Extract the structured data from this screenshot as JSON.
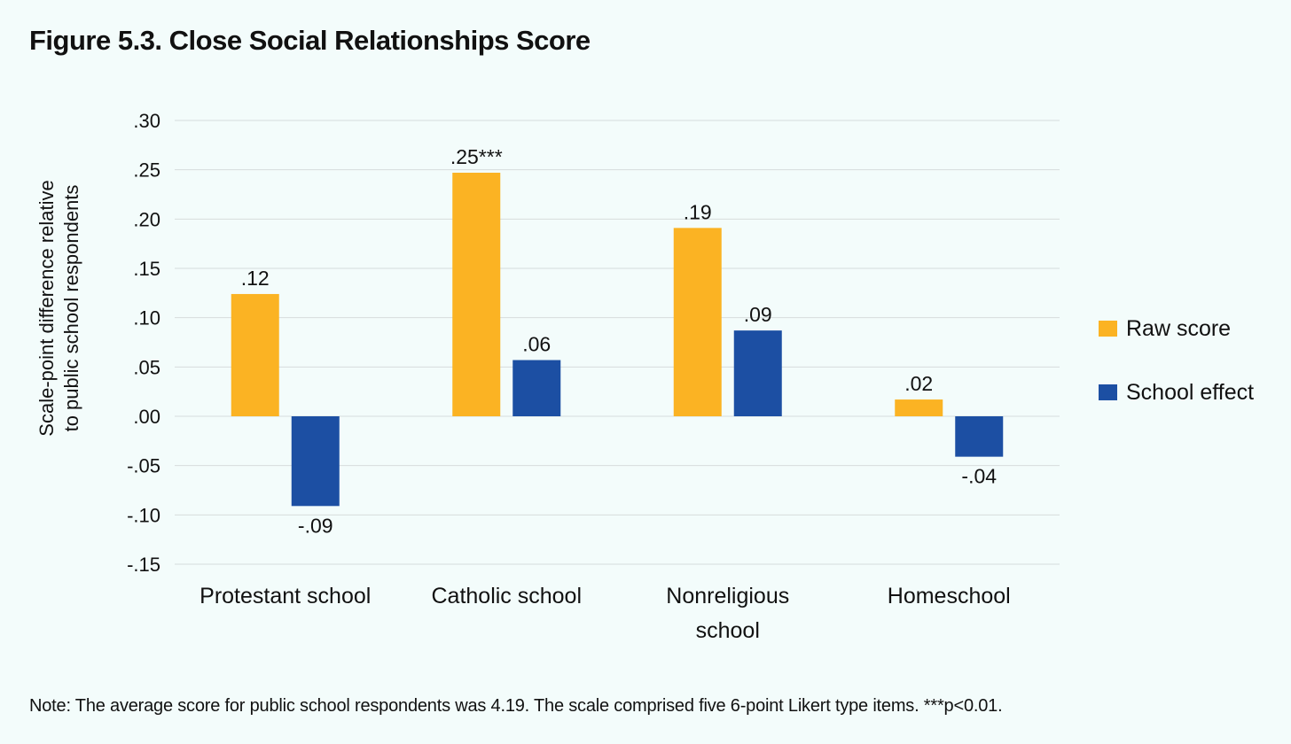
{
  "chart_data": {
    "type": "bar",
    "title": "Figure 5.3. Close Social Relationships Score",
    "ylabel_lines": [
      "Scale-point difference relative",
      "to public school respondents"
    ],
    "xlabel": "",
    "ylim": [
      -0.15,
      0.3
    ],
    "yticks": [
      0.3,
      0.25,
      0.2,
      0.15,
      0.1,
      0.05,
      0.0,
      -0.05,
      -0.1,
      -0.15
    ],
    "ytick_labels": [
      ".30",
      ".25",
      ".20",
      ".15",
      ".10",
      ".05",
      ".00",
      "-.05",
      "-.10",
      "-.15"
    ],
    "grid": true,
    "legend_position": "right",
    "categories": [
      [
        "Protestant school"
      ],
      [
        "Catholic school"
      ],
      [
        "Nonreligious",
        "school"
      ],
      [
        "Homeschool"
      ]
    ],
    "series": [
      {
        "name": "Raw score",
        "color": "#fbb323",
        "values": [
          0.124,
          0.247,
          0.191,
          0.017
        ],
        "labels": [
          ".12",
          ".25***",
          ".19",
          ".02"
        ]
      },
      {
        "name": "School effect",
        "color": "#1c4fa3",
        "values": [
          -0.091,
          0.057,
          0.087,
          -0.041
        ],
        "labels": [
          "-.09",
          ".06",
          ".09",
          "-.04"
        ]
      }
    ]
  },
  "note": "Note: The average score for public school respondents was 4.19. The scale comprised five 6-point Likert type items. ***p<0.01."
}
